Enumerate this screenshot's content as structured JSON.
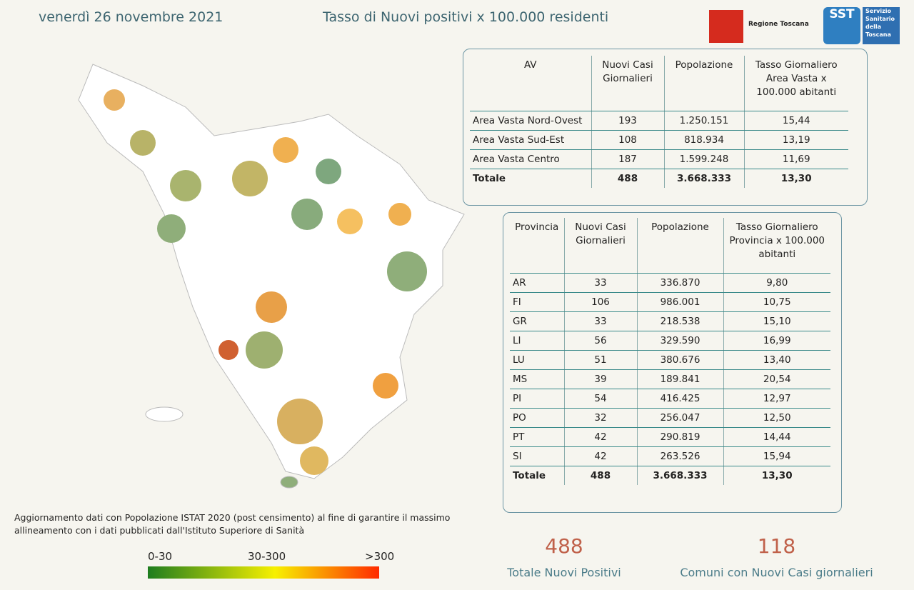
{
  "header": {
    "date": "venerdì 26 novembre 2021",
    "title": "Tasso di Nuovi positivi x 100.000 residenti",
    "logo_region": "Regione Toscana",
    "logo_sst": "SST",
    "logo_sst_text": [
      "Servizio",
      "Sanitario",
      "della",
      "Toscana"
    ]
  },
  "table_av": {
    "columns": [
      "AV",
      "Nuovi Casi Giornalieri",
      "Popolazione",
      "Tasso Giornaliero Area Vasta x 100.000 abitanti"
    ],
    "rows": [
      [
        "Area Vasta Nord-Ovest",
        "193",
        "1.250.151",
        "15,44"
      ],
      [
        "Area Vasta Sud-Est",
        "108",
        "818.934",
        "13,19"
      ],
      [
        "Area Vasta Centro",
        "187",
        "1.599.248",
        "11,69"
      ],
      [
        "Totale",
        "488",
        "3.668.333",
        "13,30"
      ]
    ]
  },
  "table_prov": {
    "columns": [
      "Provincia",
      "Nuovi Casi Giornalieri",
      "Popolazione",
      "Tasso Giornaliero Provincia x 100.000 abitanti"
    ],
    "rows": [
      [
        "AR",
        "33",
        "336.870",
        "9,80"
      ],
      [
        "FI",
        "106",
        "986.001",
        "10,75"
      ],
      [
        "GR",
        "33",
        "218.538",
        "15,10"
      ],
      [
        "LI",
        "56",
        "329.590",
        "16,99"
      ],
      [
        "LU",
        "51",
        "380.676",
        "13,40"
      ],
      [
        "MS",
        "39",
        "189.841",
        "20,54"
      ],
      [
        "PI",
        "54",
        "416.425",
        "12,97"
      ],
      [
        "PO",
        "32",
        "256.047",
        "12,50"
      ],
      [
        "PT",
        "42",
        "290.819",
        "14,44"
      ],
      [
        "SI",
        "42",
        "263.526",
        "15,94"
      ],
      [
        "Totale",
        "488",
        "3.668.333",
        "13,30"
      ]
    ]
  },
  "note": "Aggiornamento dati con Popolazione ISTAT 2020 (post censimento) al fine di garantire il massimo allineamento con i dati pubblicati dall'Istituto Superiore di Sanità",
  "legend": [
    "0-30",
    "30-300",
    ">300"
  ],
  "kpis": [
    {
      "value": "488",
      "label": "Totale Nuovi Positivi"
    },
    {
      "value": "118",
      "label": "Comuni con Nuovi Casi giornalieri"
    }
  ]
}
